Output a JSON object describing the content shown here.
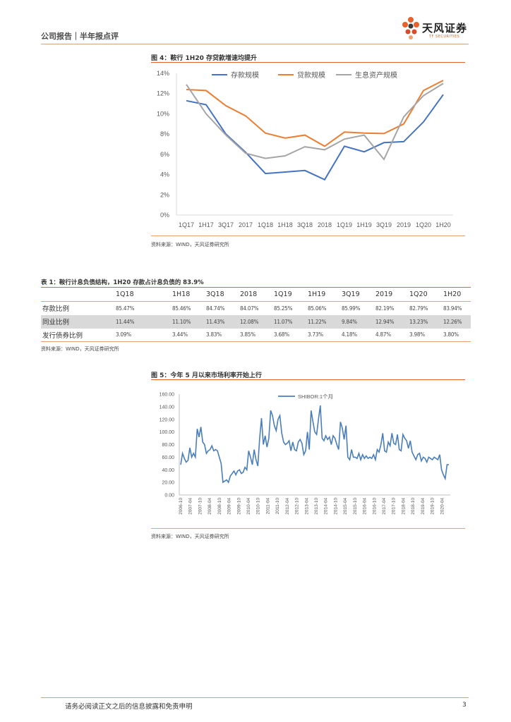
{
  "header": {
    "left_text": "公司报告｜半年报点评",
    "logo_text": "天风证券",
    "logo_sub": "TF SECURITIES"
  },
  "figure4": {
    "title": "图 4：鞍行 1H20 存贷款增速均提升",
    "source": "资料来源：WIND，天风证券研究所"
  },
  "table1": {
    "title": "表 1：鞍行计息负债结构，1H20 存款占计息负债的 83.9%",
    "headers": [
      "",
      "1Q18",
      "1H18",
      "3Q18",
      "2018",
      "1Q19",
      "1H19",
      "3Q19",
      "2019",
      "1Q20",
      "1H20"
    ],
    "rows": [
      {
        "label": "存款比例",
        "values": [
          "85.47%",
          "85.46%",
          "84.74%",
          "84.07%",
          "85.25%",
          "85.06%",
          "85.99%",
          "82.19%",
          "82.79%",
          "83.94%"
        ]
      },
      {
        "label": "同业比例",
        "values": [
          "11.44%",
          "11.10%",
          "11.43%",
          "12.08%",
          "11.07%",
          "11.22%",
          "9.84%",
          "12.94%",
          "13.23%",
          "12.26%"
        ]
      },
      {
        "label": "发行债券比例",
        "values": [
          "3.09%",
          "3.44%",
          "3.83%",
          "3.85%",
          "3.68%",
          "3.73%",
          "4.18%",
          "4.87%",
          "3.98%",
          "3.80%"
        ]
      }
    ],
    "source": "资料来源：WIND，天风证券研究所"
  },
  "figure5": {
    "title": "图 5：今年 5 月以来市场利率开始上行",
    "source": "资料来源：WIND，天风证券研究所"
  },
  "footer": {
    "disclaimer": "请务必阅读正文之后的信息披露和免责申明",
    "page": "3"
  },
  "chart_data": [
    {
      "type": "line",
      "title": "",
      "categories": [
        "1Q17",
        "1H17",
        "3Q17",
        "2017",
        "1Q18",
        "1H18",
        "3Q18",
        "2018",
        "1Q19",
        "1H19",
        "3Q19",
        "2019",
        "1Q20",
        "1H20"
      ],
      "ylim": [
        0,
        14
      ],
      "yticks": [
        "0%",
        "2%",
        "4%",
        "6%",
        "8%",
        "10%",
        "12%",
        "14%"
      ],
      "series": [
        {
          "name": "存款规模",
          "color": "#4472c4",
          "values": [
            11.3,
            10.9,
            8.0,
            6.2,
            4.1,
            4.25,
            4.4,
            3.5,
            6.8,
            6.25,
            7.15,
            7.25,
            9.2,
            11.9
          ]
        },
        {
          "name": "贷款规模",
          "color": "#ed7d31",
          "values": [
            12.4,
            12.3,
            10.8,
            9.8,
            8.1,
            7.6,
            7.9,
            6.8,
            8.2,
            8.1,
            8.05,
            9.0,
            12.3,
            13.3
          ]
        },
        {
          "name": "生息资产规模",
          "color": "#a5a5a5",
          "values": [
            12.9,
            10.0,
            7.9,
            6.1,
            5.6,
            5.85,
            6.75,
            6.45,
            7.5,
            7.9,
            5.5,
            9.7,
            11.8,
            13.0
          ]
        }
      ],
      "legend": "top"
    },
    {
      "type": "line",
      "title": "",
      "ylim": [
        0,
        160
      ],
      "yticks": [
        "0.00",
        "20.00",
        "40.00",
        "60.00",
        "80.00",
        "100.00",
        "120.00",
        "140.00",
        "160.00"
      ],
      "xticks": [
        "2006-10",
        "2007-04",
        "2007-10",
        "2008-04",
        "2008-10",
        "2009-04",
        "2009-10",
        "2010-04",
        "2010-10",
        "2011-04",
        "2011-10",
        "2012-04",
        "2012-10",
        "2013-04",
        "2013-10",
        "2014-04",
        "2014-10",
        "2015-04",
        "2015-10",
        "2016-04",
        "2016-10",
        "2017-04",
        "2017-10",
        "2018-04",
        "2018-10",
        "2019-04",
        "2019-10",
        "2020-04"
      ],
      "series": [
        {
          "name": "SHIBOR:1个月",
          "color": "#4a7ebb",
          "values": [
            48,
            66,
            58,
            52,
            55,
            75,
            60,
            66,
            60,
            105,
            92,
            108,
            84,
            80,
            66,
            70,
            72,
            78,
            70,
            72,
            70,
            60,
            50,
            20,
            22,
            24,
            20,
            30,
            34,
            38,
            32,
            38,
            40,
            34,
            36,
            44,
            40,
            70,
            60,
            48,
            72,
            56,
            46,
            90,
            122,
            80,
            94,
            76,
            90,
            134,
            126,
            110,
            102,
            120,
            126,
            98,
            84,
            80,
            82,
            86,
            70,
            84,
            72,
            70,
            84,
            88,
            82,
            64,
            70,
            100,
            72,
            134,
            116,
            100,
            96,
            120,
            142,
            90,
            86,
            94,
            88,
            92,
            80,
            94,
            90,
            80,
            72,
            116,
            106,
            88,
            110,
            60,
            56,
            72,
            60,
            60,
            58,
            66,
            56,
            64,
            58,
            62,
            58,
            60,
            58,
            64,
            56,
            72,
            68,
            80,
            98,
            70,
            68,
            84,
            78,
            98,
            82,
            80,
            96,
            72,
            70,
            96,
            90,
            86,
            74,
            86,
            68,
            62,
            56,
            64,
            66,
            54,
            60,
            58,
            52,
            60,
            58,
            56,
            60,
            58,
            56,
            64,
            40,
            32,
            26,
            48,
            48
          ]
        }
      ],
      "legend": "top"
    }
  ]
}
